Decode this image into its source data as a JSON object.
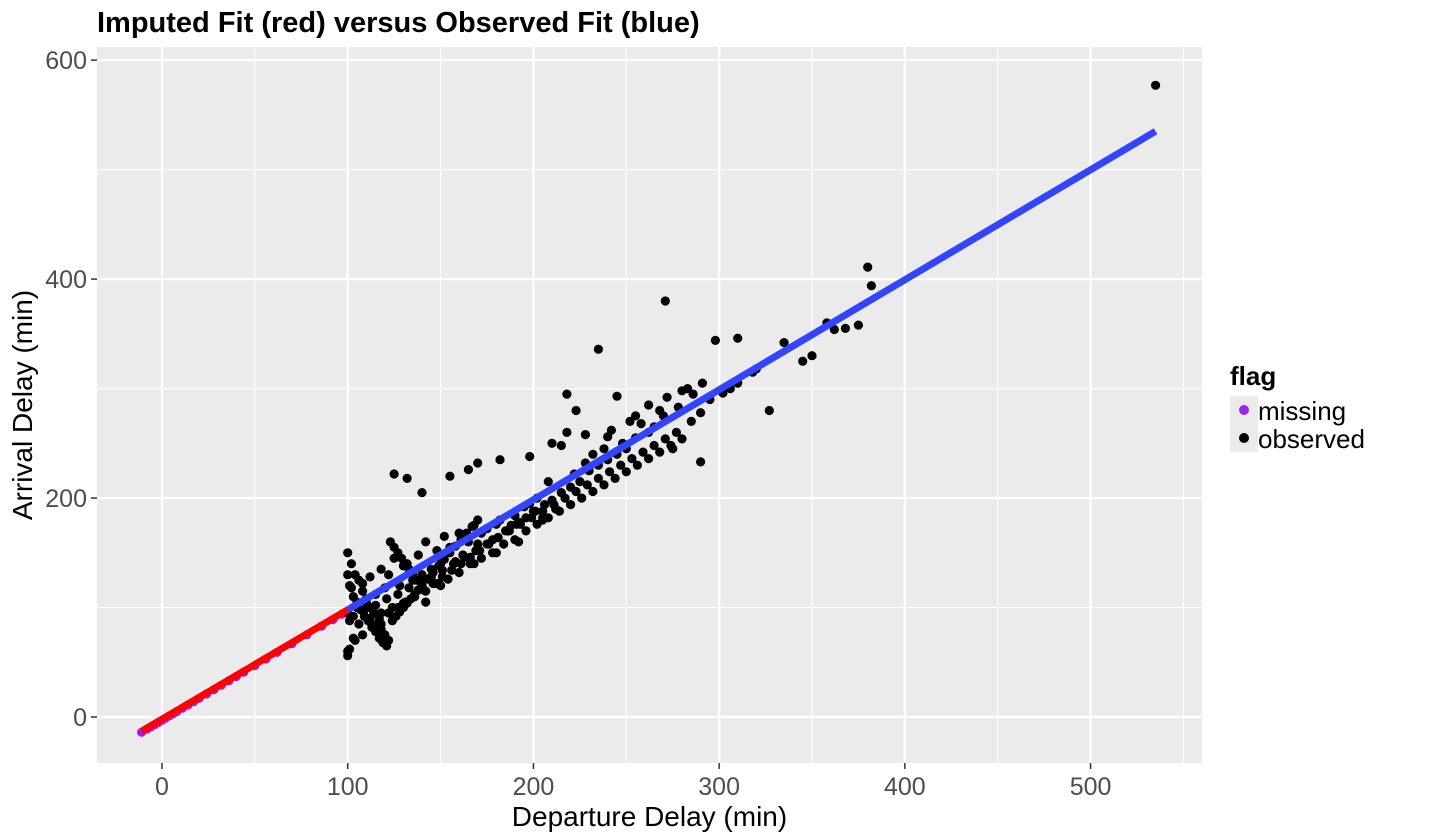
{
  "chart_data": {
    "type": "scatter",
    "title": "Imputed Fit (red) versus Observed Fit (blue)",
    "xlabel": "Departure Delay (min)",
    "ylabel": "Arrival Delay (min)",
    "xlim": [
      -35,
      560
    ],
    "ylim": [
      -42,
      612
    ],
    "x_ticks": [
      0,
      100,
      200,
      300,
      400,
      500
    ],
    "y_ticks": [
      0,
      200,
      400,
      600
    ],
    "x_tick_labels": [
      "0",
      "100",
      "200",
      "300",
      "400",
      "500"
    ],
    "y_tick_labels": [
      "0",
      "200",
      "400",
      "600"
    ],
    "grid": true,
    "legend": {
      "title": "flag",
      "position": "right",
      "entries": [
        {
          "label": "missing",
          "color": "#a020f0"
        },
        {
          "label": "observed",
          "color": "#000000"
        }
      ]
    },
    "colors": {
      "panel_background": "#ebebeb",
      "grid": "#ffffff",
      "imputed_fit": "#ff0000",
      "observed_fit": "#3344ff",
      "missing_points": "#a020f0",
      "observed_points": "#000000"
    },
    "fit_lines": [
      {
        "name": "imputed",
        "color": "#ff0000",
        "x": [
          -11,
          100
        ],
        "y": [
          -13,
          98
        ]
      },
      {
        "name": "observed",
        "color": "#3344ff",
        "x": [
          100,
          535
        ],
        "y": [
          98,
          535
        ]
      }
    ],
    "series": [
      {
        "name": "missing",
        "x": [
          -11,
          -8,
          -6,
          -4,
          -2,
          0,
          2,
          4,
          6,
          8,
          11,
          14,
          17,
          20,
          24,
          28,
          32,
          36,
          40,
          44,
          50,
          56,
          62,
          70,
          78,
          86,
          92,
          97
        ],
        "y": [
          -14,
          -11,
          -9,
          -7,
          -5,
          -3,
          -1,
          1,
          3,
          5,
          8,
          11,
          14,
          17,
          21,
          25,
          29,
          33,
          37,
          41,
          47,
          53,
          59,
          67,
          75,
          83,
          89,
          94
        ]
      },
      {
        "name": "observed",
        "x": [
          535,
          380,
          382,
          271,
          235,
          310,
          298,
          245,
          375,
          368,
          362,
          358,
          350,
          345,
          335,
          327,
          320,
          318,
          310,
          306,
          302,
          295,
          290,
          286,
          283,
          280,
          278,
          275,
          272,
          270,
          268,
          265,
          262,
          258,
          255,
          252,
          250,
          248,
          245,
          242,
          240,
          238,
          235,
          232,
          230,
          228,
          225,
          222,
          220,
          218,
          215,
          212,
          210,
          208,
          205,
          202,
          200,
          198,
          195,
          192,
          190,
          188,
          185,
          182,
          180,
          178,
          175,
          172,
          170,
          168,
          165,
          162,
          160,
          158,
          155,
          152,
          150,
          148,
          145,
          142,
          140,
          138,
          135,
          132,
          130,
          128,
          125,
          122,
          120,
          118,
          115,
          112,
          110,
          108,
          105,
          102,
          100,
          101,
          103,
          106,
          109,
          112,
          115,
          118,
          121,
          124,
          127,
          130,
          133,
          136,
          139,
          142,
          145,
          148,
          151,
          154,
          157,
          160,
          163,
          166,
          169,
          172,
          175,
          178,
          181,
          184,
          187,
          190,
          193,
          196,
          199,
          202,
          205,
          208,
          211,
          214,
          217,
          220,
          223,
          226,
          229,
          232,
          235,
          238,
          241,
          244,
          247,
          250,
          253,
          256,
          259,
          262,
          265,
          268,
          271,
          274,
          277,
          280,
          285,
          290,
          100,
          102,
          104,
          106,
          108,
          110,
          112,
          114,
          116,
          118,
          120,
          122,
          124,
          126,
          128,
          130,
          132,
          134,
          136,
          138,
          140,
          143,
          146,
          149,
          152,
          155,
          158,
          161,
          164,
          167,
          170,
          100,
          101,
          103,
          105,
          107,
          109,
          111,
          113,
          115,
          117,
          119,
          121,
          123,
          125,
          127,
          129,
          131,
          133,
          135,
          137,
          125,
          140,
          132,
          155,
          165,
          170,
          182,
          198,
          210,
          215,
          228,
          240,
          255,
          262,
          291,
          218,
          223,
          205,
          192,
          180,
          168,
          150,
          142,
          118,
          108,
          104,
          100,
          100,
          101,
          103,
          113,
          117,
          122,
          127,
          131,
          136,
          141,
          146,
          151,
          156,
          161,
          166,
          171,
          176,
          181,
          186,
          191,
          196,
          201,
          206
        ],
        "y": [
          577,
          411,
          394,
          380,
          336,
          346,
          344,
          293,
          358,
          355,
          354,
          360,
          330,
          325,
          342,
          280,
          318,
          315,
          305,
          300,
          296,
          290,
          233,
          295,
          300,
          298,
          283,
          245,
          292,
          275,
          280,
          265,
          260,
          268,
          255,
          270,
          245,
          250,
          240,
          262,
          235,
          245,
          230,
          240,
          225,
          232,
          215,
          222,
          210,
          260,
          205,
          190,
          198,
          215,
          182,
          200,
          188,
          195,
          192,
          178,
          184,
          175,
          170,
          180,
          176,
          162,
          172,
          168,
          158,
          175,
          160,
          148,
          168,
          142,
          155,
          165,
          140,
          152,
          135,
          160,
          130,
          148,
          125,
          140,
          138,
          120,
          145,
          130,
          118,
          135,
          112,
          128,
          105,
          122,
          100,
          118,
          95,
          88,
          92,
          85,
          98,
          90,
          102,
          95,
          108,
          100,
          112,
          104,
          118,
          110,
          124,
          115,
          128,
          122,
          134,
          126,
          140,
          132,
          146,
          140,
          152,
          145,
          158,
          150,
          164,
          158,
          170,
          162,
          176,
          170,
          182,
          176,
          188,
          182,
          194,
          188,
          200,
          194,
          206,
          200,
          212,
          206,
          218,
          212,
          224,
          218,
          230,
          224,
          236,
          230,
          242,
          236,
          248,
          242,
          254,
          248,
          260,
          254,
          270,
          278,
          150,
          140,
          130,
          125,
          115,
          108,
          100,
          95,
          85,
          80,
          75,
          70,
          88,
          92,
          96,
          100,
          104,
          108,
          112,
          116,
          120,
          126,
          132,
          138,
          144,
          150,
          156,
          162,
          168,
          174,
          180,
          130,
          120,
          110,
          105,
          98,
          92,
          88,
          84,
          78,
          72,
          68,
          65,
          160,
          155,
          150,
          145,
          140,
          135,
          130,
          125,
          222,
          205,
          218,
          220,
          226,
          232,
          235,
          238,
          250,
          248,
          258,
          256,
          275,
          285,
          305,
          295,
          280,
          180,
          160,
          150,
          140,
          120,
          105,
          85,
          75,
          70,
          60,
          56,
          62,
          72,
          82,
          90,
          95,
          100,
          105,
          110,
          116,
          122,
          128,
          134,
          140,
          146,
          152,
          158,
          164,
          170,
          176,
          182,
          188,
          194
        ]
      }
    ]
  }
}
